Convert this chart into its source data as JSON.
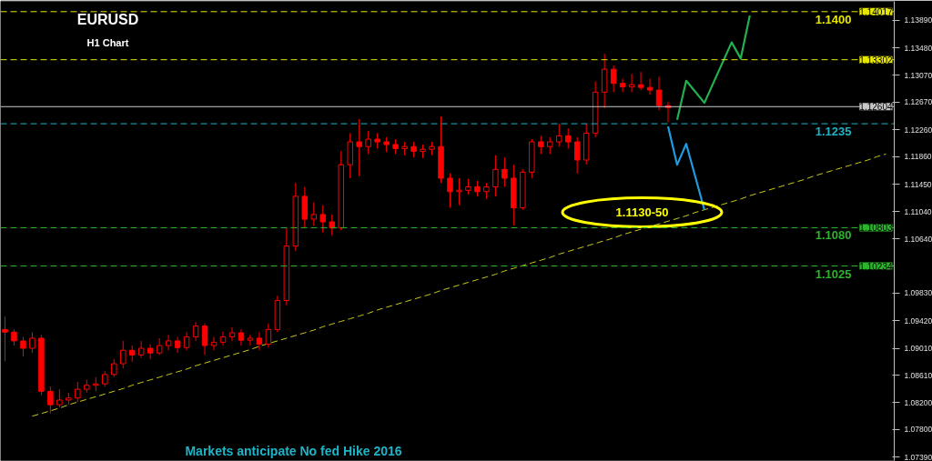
{
  "chart_data": {
    "type": "candlestick",
    "title": "EURUSD",
    "subtitle": "H1 Chart",
    "categories": [
      null,
      null,
      null,
      null,
      null,
      null,
      null,
      null,
      null,
      null,
      null,
      null,
      null,
      null,
      null,
      null,
      null,
      null,
      null,
      null,
      null,
      null,
      null,
      null,
      null,
      null,
      null,
      null,
      null,
      null,
      null,
      null,
      null,
      null,
      null,
      null,
      null,
      null,
      null,
      null,
      null,
      null,
      null,
      null,
      null,
      null,
      null,
      null,
      null,
      null,
      null,
      null,
      null,
      null,
      null,
      null,
      null,
      null,
      null,
      null,
      null,
      null,
      null,
      null,
      null,
      null,
      null,
      null,
      null,
      null,
      null,
      null,
      null,
      null,
      null,
      null,
      null,
      null,
      null,
      null,
      null,
      null,
      null,
      null,
      null,
      null,
      null,
      null,
      null,
      null,
      null,
      null,
      null,
      null,
      null,
      null,
      null,
      null
    ],
    "color": "#ff0000",
    "ohlc": [
      [
        1.0929,
        1.0948,
        1.0882,
        1.0925
      ],
      [
        1.0925,
        1.0929,
        1.0905,
        1.0912
      ],
      [
        1.0912,
        1.0918,
        1.0889,
        1.0901
      ],
      [
        1.0901,
        1.0925,
        1.0894,
        1.0916
      ],
      [
        1.0916,
        1.0921,
        1.0831,
        1.0837
      ],
      [
        1.0837,
        1.0844,
        1.0804,
        1.0817
      ],
      [
        1.0817,
        1.084,
        1.0813,
        1.0824
      ],
      [
        1.0824,
        1.0835,
        1.0817,
        1.0827
      ],
      [
        1.0827,
        1.0851,
        1.0821,
        1.084
      ],
      [
        1.084,
        1.0854,
        1.0835,
        1.0846
      ],
      [
        1.0846,
        1.0858,
        1.0837,
        1.0848
      ],
      [
        1.0848,
        1.0867,
        1.0844,
        1.0862
      ],
      [
        1.0862,
        1.0885,
        1.0858,
        1.0878
      ],
      [
        1.0878,
        1.0912,
        1.0871,
        1.0898
      ],
      [
        1.0898,
        1.0905,
        1.0881,
        1.0891
      ],
      [
        1.0891,
        1.0912,
        1.0887,
        1.0901
      ],
      [
        1.0901,
        1.0907,
        1.0885,
        1.0894
      ],
      [
        1.0894,
        1.0916,
        1.0891,
        1.0905
      ],
      [
        1.0905,
        1.0921,
        1.0898,
        1.0912
      ],
      [
        1.0912,
        1.0918,
        1.0894,
        1.0902
      ],
      [
        1.0902,
        1.0925,
        1.0898,
        1.0918
      ],
      [
        1.0918,
        1.094,
        1.0912,
        1.0934
      ],
      [
        1.0934,
        1.0938,
        1.0891,
        1.0905
      ],
      [
        1.0905,
        1.0918,
        1.0898,
        1.091
      ],
      [
        1.091,
        1.0926,
        1.0905,
        1.0918
      ],
      [
        1.0918,
        1.0932,
        1.0912,
        1.0924
      ],
      [
        1.0924,
        1.0929,
        1.0905,
        1.0913
      ],
      [
        1.0913,
        1.0921,
        1.0905,
        1.0916
      ],
      [
        1.0916,
        1.0925,
        1.0898,
        1.0907
      ],
      [
        1.0907,
        1.0938,
        1.0902,
        1.0929
      ],
      [
        1.0929,
        1.0979,
        1.0925,
        1.0972
      ],
      [
        1.0972,
        1.108,
        1.0965,
        1.1053
      ],
      [
        1.1053,
        1.1147,
        1.1046,
        1.1127
      ],
      [
        1.1127,
        1.1141,
        1.108,
        1.1093
      ],
      [
        1.1093,
        1.1118,
        1.1083,
        1.11
      ],
      [
        1.11,
        1.1114,
        1.1073,
        1.1089
      ],
      [
        1.1089,
        1.11,
        1.1069,
        1.108
      ],
      [
        1.108,
        1.1194,
        1.1077,
        1.1174
      ],
      [
        1.1174,
        1.1221,
        1.1154,
        1.1208
      ],
      [
        1.1208,
        1.1242,
        1.1157,
        1.1201
      ],
      [
        1.1201,
        1.1224,
        1.119,
        1.1212
      ],
      [
        1.1212,
        1.1221,
        1.1198,
        1.1208
      ],
      [
        1.1208,
        1.1215,
        1.1193,
        1.1204
      ],
      [
        1.1204,
        1.1212,
        1.119,
        1.1198
      ],
      [
        1.1198,
        1.1208,
        1.1188,
        1.1201
      ],
      [
        1.1201,
        1.1208,
        1.1185,
        1.1194
      ],
      [
        1.1194,
        1.1204,
        1.1184,
        1.1197
      ],
      [
        1.1197,
        1.1208,
        1.1188,
        1.1201
      ],
      [
        1.1201,
        1.1246,
        1.1147,
        1.1154
      ],
      [
        1.1154,
        1.1161,
        1.111,
        1.1134
      ],
      [
        1.1134,
        1.1154,
        1.1114,
        1.1136
      ],
      [
        1.1136,
        1.1153,
        1.113,
        1.1141
      ],
      [
        1.1141,
        1.115,
        1.1127,
        1.1134
      ],
      [
        1.1134,
        1.1147,
        1.1123,
        1.1141
      ],
      [
        1.1141,
        1.1188,
        1.1127,
        1.1167
      ],
      [
        1.1167,
        1.1185,
        1.1141,
        1.1154
      ],
      [
        1.1154,
        1.1174,
        1.1084,
        1.111
      ],
      [
        1.111,
        1.1167,
        1.1107,
        1.1163
      ],
      [
        1.1163,
        1.1212,
        1.1154,
        1.1208
      ],
      [
        1.1208,
        1.1217,
        1.119,
        1.1201
      ],
      [
        1.1201,
        1.1215,
        1.119,
        1.1208
      ],
      [
        1.1208,
        1.1235,
        1.1201,
        1.1217
      ],
      [
        1.1217,
        1.1228,
        1.1198,
        1.1208
      ],
      [
        1.1208,
        1.1215,
        1.1161,
        1.1181
      ],
      [
        1.1181,
        1.1235,
        1.1174,
        1.1221
      ],
      [
        1.1221,
        1.1298,
        1.1215,
        1.1282
      ],
      [
        1.1282,
        1.1339,
        1.1258,
        1.1316
      ],
      [
        1.1316,
        1.1322,
        1.1282,
        1.1295
      ],
      [
        1.1295,
        1.1302,
        1.1282,
        1.129
      ],
      [
        1.129,
        1.1309,
        1.1282,
        1.1293
      ],
      [
        1.1293,
        1.1312,
        1.1285,
        1.1289
      ],
      [
        1.1289,
        1.1302,
        1.1278,
        1.1285
      ],
      [
        1.1285,
        1.1305,
        1.1255,
        1.1262
      ],
      [
        1.1262,
        1.1268,
        1.1237,
        1.1259
      ],
      null,
      null,
      null,
      null,
      null,
      null,
      null,
      null,
      null,
      null,
      null,
      null,
      null,
      null,
      null,
      null,
      null,
      null,
      null,
      null,
      null,
      null,
      null,
      null
    ],
    "series": [
      {
        "type": "line",
        "color": "#c8c814",
        "line_style": "dashed",
        "values": [
          null,
          null,
          null,
          1.08,
          1.0804,
          1.0808,
          1.0812,
          1.0817,
          1.0821,
          1.0825,
          1.0829,
          1.0833,
          1.0837,
          1.0841,
          1.0846,
          1.085,
          1.0854,
          1.0858,
          1.0862,
          1.0866,
          1.087,
          1.0875,
          1.0879,
          1.0883,
          1.0887,
          1.0891,
          1.0895,
          1.0899,
          1.0904,
          1.0908,
          1.0912,
          1.0916,
          1.092,
          1.0924,
          1.0928,
          1.0933,
          1.0937,
          1.0941,
          1.0945,
          1.0949,
          1.0953,
          1.0958,
          1.0962,
          1.0966,
          1.097,
          1.0974,
          1.0978,
          1.0982,
          1.0987,
          1.0991,
          1.0995,
          1.0999,
          1.1003,
          1.1007,
          1.1011,
          1.1016,
          1.102,
          1.1024,
          1.1028,
          1.1032,
          1.1036,
          1.1041,
          1.1045,
          1.1049,
          1.1053,
          1.1057,
          1.1061,
          1.1065,
          1.107,
          1.1074,
          1.1078,
          1.1082,
          1.1086,
          1.109,
          1.1094,
          1.1098,
          1.1103,
          1.1107,
          1.1111,
          1.1115,
          1.1119,
          1.1123,
          1.1128,
          1.1132,
          1.1136,
          1.114,
          1.1144,
          1.1148,
          1.1152,
          1.1157,
          1.1161,
          1.1165,
          1.1169,
          1.1173,
          1.1177,
          1.1181,
          1.1186,
          1.119
        ]
      },
      {
        "type": "line",
        "color": "#22b14c",
        "line_style": "solid",
        "values": [
          null,
          null,
          null,
          null,
          null,
          null,
          null,
          null,
          null,
          null,
          null,
          null,
          null,
          null,
          null,
          null,
          null,
          null,
          null,
          null,
          null,
          null,
          null,
          null,
          null,
          null,
          null,
          null,
          null,
          null,
          null,
          null,
          null,
          null,
          null,
          null,
          null,
          null,
          null,
          null,
          null,
          null,
          null,
          null,
          null,
          null,
          null,
          null,
          null,
          null,
          null,
          null,
          null,
          null,
          null,
          null,
          null,
          null,
          null,
          null,
          null,
          null,
          null,
          null,
          null,
          null,
          null,
          null,
          null,
          null,
          null,
          null,
          null,
          null,
          1.1241,
          1.1299,
          null,
          1.1266,
          null,
          null,
          1.1356,
          1.1332,
          1.1396,
          null,
          null,
          null,
          null,
          null,
          null,
          null,
          null,
          null,
          null,
          null,
          null,
          null,
          null,
          null
        ]
      },
      {
        "type": "line",
        "color": "#1e9be0",
        "line_style": "solid",
        "values": [
          null,
          null,
          null,
          null,
          null,
          null,
          null,
          null,
          null,
          null,
          null,
          null,
          null,
          null,
          null,
          null,
          null,
          null,
          null,
          null,
          null,
          null,
          null,
          null,
          null,
          null,
          null,
          null,
          null,
          null,
          null,
          null,
          null,
          null,
          null,
          null,
          null,
          null,
          null,
          null,
          null,
          null,
          null,
          null,
          null,
          null,
          null,
          null,
          null,
          null,
          null,
          null,
          null,
          null,
          null,
          null,
          null,
          null,
          null,
          null,
          null,
          null,
          null,
          null,
          null,
          null,
          null,
          null,
          null,
          null,
          null,
          null,
          null,
          1.1231,
          1.1174,
          1.1205,
          null,
          1.1107,
          null,
          null,
          null,
          null,
          null,
          null,
          null,
          null,
          null,
          null,
          null,
          null,
          null,
          null,
          null,
          null,
          null,
          null,
          null,
          null
        ]
      }
    ],
    "ylim": [
      1.0734,
      1.1417
    ],
    "yticks": [
      {
        "value": 1.1389,
        "label": "1.13890"
      },
      {
        "value": 1.1348,
        "label": "1.13480"
      },
      {
        "value": 1.1307,
        "label": "1.13070"
      },
      {
        "value": 1.1267,
        "label": "1.12670"
      },
      {
        "value": 1.1226,
        "label": "1.12260"
      },
      {
        "value": 1.1186,
        "label": "1.11860"
      },
      {
        "value": 1.1145,
        "label": "1.11450"
      },
      {
        "value": 1.1104,
        "label": "1.11040"
      },
      {
        "value": 1.1064,
        "label": "1.10640"
      },
      {
        "value": 1.0983,
        "label": "1.09830"
      },
      {
        "value": 1.0942,
        "label": "1.09420"
      },
      {
        "value": 1.0901,
        "label": "1.09010"
      },
      {
        "value": 1.0861,
        "label": "1.08610"
      },
      {
        "value": 1.082,
        "label": "1.08200"
      },
      {
        "value": 1.078,
        "label": "1.07800"
      },
      {
        "value": 1.0739,
        "label": "1.07390"
      }
    ],
    "tick_labels": "y",
    "ref_lines": [
      {
        "axis": "y",
        "value": 1.14017,
        "label": "1.14017",
        "color": "#e6e600",
        "line_style": "dashed"
      },
      {
        "axis": "y",
        "value": 1.13302,
        "label": "1.13302",
        "color": "#e6e600",
        "line_style": "dashed"
      },
      {
        "axis": "y",
        "value": 1.12604,
        "label": "1.12604",
        "color": "#c8c8c8",
        "line_style": "solid"
      },
      {
        "axis": "y",
        "value": 1.1235,
        "color": "#1eb4c8",
        "line_style": "dashed"
      },
      {
        "axis": "y",
        "value": 1.10803,
        "label": "1.10803",
        "color": "#2db42d",
        "line_style": "dashed"
      },
      {
        "axis": "y",
        "value": 1.10234,
        "label": "1.10234",
        "color": "#2db42d",
        "line_style": "dashed"
      }
    ],
    "annotations": [
      "1.1130-50",
      "Markets anticipate No fed Hike 2016",
      {
        "text": "1.1400",
        "y": 1.14017
      },
      {
        "text": "1.1235",
        "y": 1.1235
      },
      {
        "text": "1.1080",
        "y": 1.10803
      },
      {
        "text": "1.1025",
        "y": 1.10234
      }
    ]
  }
}
